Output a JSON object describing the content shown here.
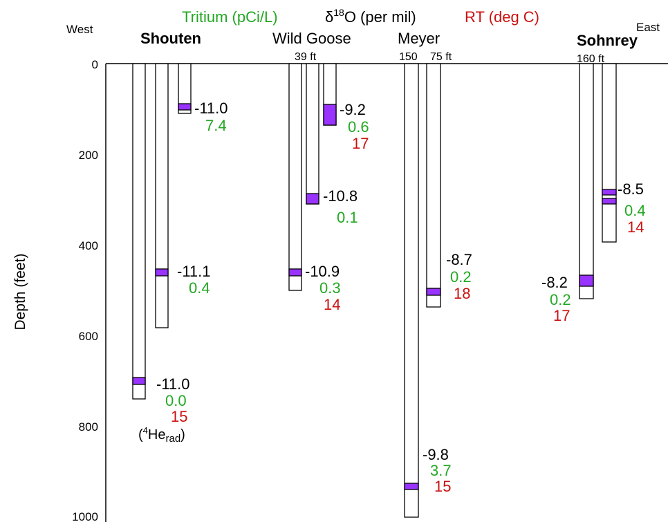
{
  "directions": {
    "west": "West",
    "east": "East"
  },
  "legend": {
    "tritium": "Tritium (pCi/L)",
    "delta_symbol": "δ",
    "delta_sup": "18",
    "delta_rest": "O (per mil)",
    "rt": "RT (deg C)"
  },
  "axis": {
    "title": "Depth (feet)",
    "ticks": [
      "0",
      "200",
      "400",
      "600",
      "800",
      "1000"
    ]
  },
  "well_names": {
    "shouten": "Shouten",
    "wild_goose": "Wild Goose",
    "meyer": "Meyer",
    "sohnrey": "Sohnrey"
  },
  "depth_labels": {
    "wild_goose": "39 ft",
    "meyer_left": "150",
    "meyer_right": "75 ft",
    "sohnrey": "160 ft"
  },
  "values": {
    "shouten_shallow": {
      "d18o": "-11.0",
      "tritium": "7.4"
    },
    "shouten_mid": {
      "d18o": "-11.1",
      "tritium": "0.4"
    },
    "shouten_deep": {
      "d18o": "-11.0",
      "tritium": "0.0",
      "rt": "15",
      "note_pre": "(",
      "note_sup": "4",
      "note_he": "He",
      "note_sub": "rad",
      "note_post": ")"
    },
    "wildgoose_shallow": {
      "d18o": "-9.2",
      "tritium": "0.6",
      "rt": "17"
    },
    "wildgoose_mid": {
      "d18o": "-10.8",
      "tritium": "0.1"
    },
    "wildgoose_deep": {
      "d18o": "-10.9",
      "tritium": "0.3",
      "rt": "14"
    },
    "meyer_mid": {
      "d18o": "-8.7",
      "tritium": "0.2",
      "rt": "18"
    },
    "meyer_deep": {
      "d18o": "-9.8",
      "tritium": "3.7",
      "rt": "15"
    },
    "sohnrey_shallow": {
      "d18o": "-8.5",
      "tritium": "0.4",
      "rt": "14"
    },
    "sohnrey_deep": {
      "d18o": "-8.2",
      "tritium": "0.2",
      "rt": "17"
    }
  },
  "colors": {
    "tritium": "#22a822",
    "rt": "#cc1111",
    "d18o": "#000000",
    "screen": "#9933ff",
    "well_stroke": "#000000"
  }
}
